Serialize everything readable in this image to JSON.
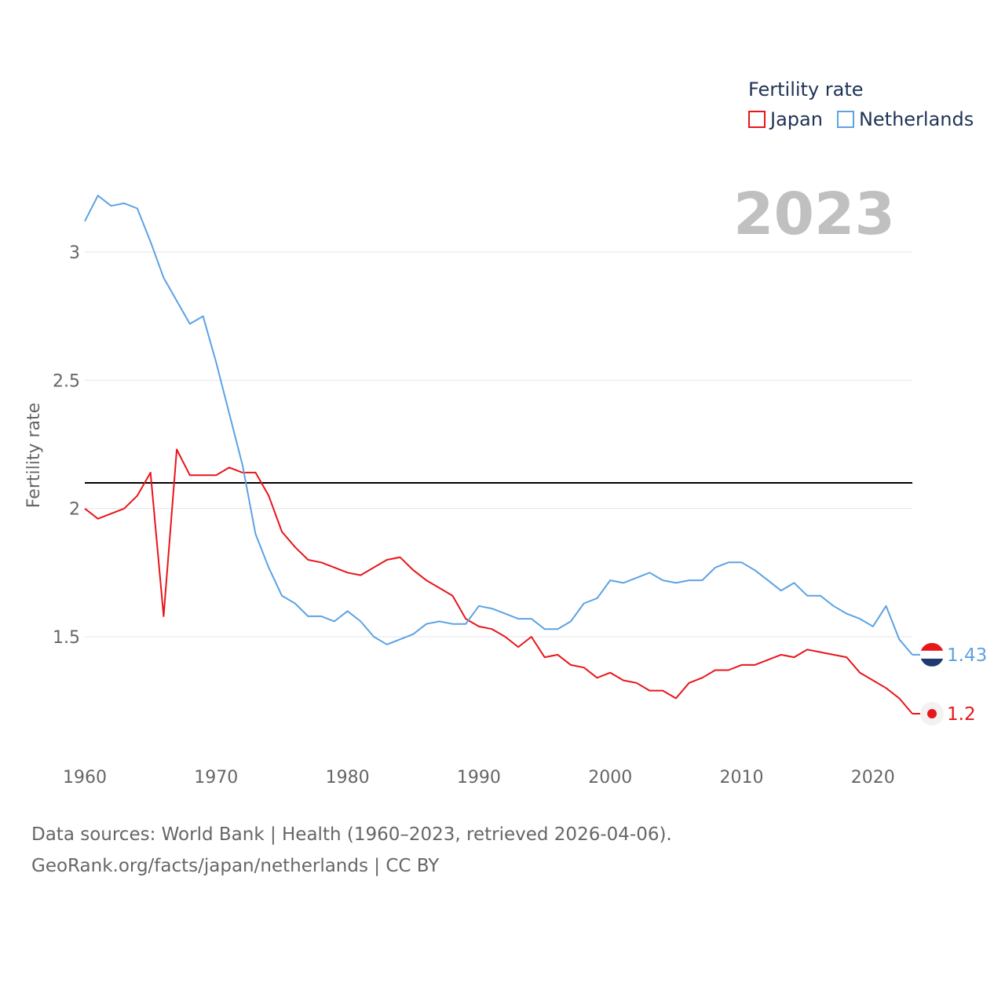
{
  "chart_data": {
    "type": "line",
    "title": "Fertility rate",
    "ylabel": "Fertility rate",
    "xlabel": "",
    "year_display": "2023",
    "xlim": [
      1960,
      2023
    ],
    "ylim": [
      1.05,
      3.3
    ],
    "x_ticks": [
      1960,
      1970,
      1980,
      1990,
      2000,
      2010,
      2020
    ],
    "y_ticks": [
      1.5,
      2,
      2.5,
      3
    ],
    "y_tick_labels": [
      "1.5",
      "2",
      "2.5",
      "3"
    ],
    "reference_line": {
      "value": 2.1,
      "color": "#000000"
    },
    "x": [
      1960,
      1961,
      1962,
      1963,
      1964,
      1965,
      1966,
      1967,
      1968,
      1969,
      1970,
      1971,
      1972,
      1973,
      1974,
      1975,
      1976,
      1977,
      1978,
      1979,
      1980,
      1981,
      1982,
      1983,
      1984,
      1985,
      1986,
      1987,
      1988,
      1989,
      1990,
      1991,
      1992,
      1993,
      1994,
      1995,
      1996,
      1997,
      1998,
      1999,
      2000,
      2001,
      2002,
      2003,
      2004,
      2005,
      2006,
      2007,
      2008,
      2009,
      2010,
      2011,
      2012,
      2013,
      2014,
      2015,
      2016,
      2017,
      2018,
      2019,
      2020,
      2021,
      2022,
      2023
    ],
    "series": [
      {
        "name": "Japan",
        "color": "#e8151b",
        "end_label": "1.2",
        "values": [
          2.0,
          1.96,
          1.98,
          2.0,
          2.05,
          2.14,
          1.58,
          2.23,
          2.13,
          2.13,
          2.13,
          2.16,
          2.14,
          2.14,
          2.05,
          1.91,
          1.85,
          1.8,
          1.79,
          1.77,
          1.75,
          1.74,
          1.77,
          1.8,
          1.81,
          1.76,
          1.72,
          1.69,
          1.66,
          1.57,
          1.54,
          1.53,
          1.5,
          1.46,
          1.5,
          1.42,
          1.43,
          1.39,
          1.38,
          1.34,
          1.36,
          1.33,
          1.32,
          1.29,
          1.29,
          1.26,
          1.32,
          1.34,
          1.37,
          1.37,
          1.39,
          1.39,
          1.41,
          1.43,
          1.42,
          1.45,
          1.44,
          1.43,
          1.42,
          1.36,
          1.33,
          1.3,
          1.26,
          1.2
        ]
      },
      {
        "name": "Netherlands",
        "color": "#5da2e3",
        "end_label": "1.43",
        "values": [
          3.12,
          3.22,
          3.18,
          3.19,
          3.17,
          3.04,
          2.9,
          2.81,
          2.72,
          2.75,
          2.57,
          2.37,
          2.17,
          1.9,
          1.77,
          1.66,
          1.63,
          1.58,
          1.58,
          1.56,
          1.6,
          1.56,
          1.5,
          1.47,
          1.49,
          1.51,
          1.55,
          1.56,
          1.55,
          1.55,
          1.62,
          1.61,
          1.59,
          1.57,
          1.57,
          1.53,
          1.53,
          1.56,
          1.63,
          1.65,
          1.72,
          1.71,
          1.73,
          1.75,
          1.72,
          1.71,
          1.72,
          1.72,
          1.77,
          1.79,
          1.79,
          1.76,
          1.72,
          1.68,
          1.71,
          1.66,
          1.66,
          1.62,
          1.59,
          1.57,
          1.54,
          1.62,
          1.49,
          1.43
        ]
      }
    ]
  },
  "footer": {
    "line1": "Data sources: World Bank | Health (1960–2023, retrieved 2026-04-06).",
    "line2": "GeoRank.org/facts/japan/netherlands | CC BY"
  }
}
